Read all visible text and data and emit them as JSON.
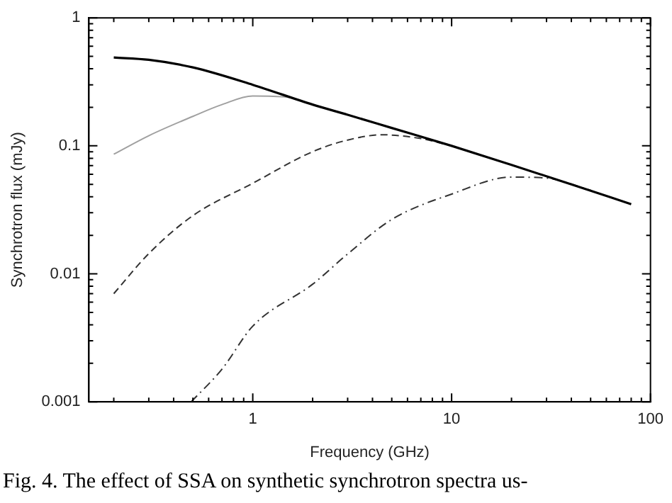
{
  "chart_data": {
    "type": "line",
    "xlabel": "Frequency (GHz)",
    "ylabel": "Synchrotron flux (mJy)",
    "log": "xy",
    "grid": false,
    "marker": "none",
    "xlim": [
      0.15,
      100
    ],
    "ylim": [
      0.001,
      1
    ],
    "xticks": [
      {
        "value": 0.2,
        "label": null
      },
      {
        "value": 0.3,
        "label": null
      },
      {
        "value": 0.4,
        "label": null
      },
      {
        "value": 0.5,
        "label": null
      },
      {
        "value": 0.6,
        "label": null
      },
      {
        "value": 0.7,
        "label": null
      },
      {
        "value": 0.8,
        "label": null
      },
      {
        "value": 0.9,
        "label": null
      },
      1,
      {
        "value": 2,
        "label": null
      },
      {
        "value": 3,
        "label": null
      },
      {
        "value": 4,
        "label": null
      },
      {
        "value": 5,
        "label": null
      },
      {
        "value": 6,
        "label": null
      },
      {
        "value": 7,
        "label": null
      },
      {
        "value": 8,
        "label": null
      },
      {
        "value": 9,
        "label": null
      },
      10,
      {
        "value": 20,
        "label": null
      },
      {
        "value": 30,
        "label": null
      },
      {
        "value": 40,
        "label": null
      },
      {
        "value": 50,
        "label": null
      },
      {
        "value": 60,
        "label": null
      },
      {
        "value": 70,
        "label": null
      },
      {
        "value": 80,
        "label": null
      },
      {
        "value": 90,
        "label": null
      },
      100
    ],
    "yticks": [
      0.001,
      {
        "value": 0.002,
        "label": null
      },
      {
        "value": 0.003,
        "label": null
      },
      {
        "value": 0.004,
        "label": null
      },
      {
        "value": 0.005,
        "label": null
      },
      {
        "value": 0.006,
        "label": null
      },
      {
        "value": 0.007,
        "label": null
      },
      {
        "value": 0.008,
        "label": null
      },
      {
        "value": 0.009,
        "label": null
      },
      0.01,
      {
        "value": 0.02,
        "label": null
      },
      {
        "value": 0.03,
        "label": null
      },
      {
        "value": 0.04,
        "label": null
      },
      {
        "value": 0.05,
        "label": null
      },
      {
        "value": 0.06,
        "label": null
      },
      {
        "value": 0.07,
        "label": null
      },
      {
        "value": 0.08,
        "label": null
      },
      {
        "value": 0.09,
        "label": null
      },
      0.1,
      {
        "value": 0.2,
        "label": null
      },
      {
        "value": 0.3,
        "label": null
      },
      {
        "value": 0.4,
        "label": null
      },
      {
        "value": 0.5,
        "label": null
      },
      {
        "value": 0.6,
        "label": null
      },
      {
        "value": 0.7,
        "label": null
      },
      {
        "value": 0.8,
        "label": null
      },
      {
        "value": 0.9,
        "label": null
      },
      1
    ],
    "series": [
      {
        "color": "#000000",
        "line_style": "solid",
        "x": [
          0.2,
          0.3,
          0.5,
          1,
          2,
          3,
          5,
          10,
          20,
          40,
          80
        ],
        "values": [
          0.49,
          0.47,
          0.41,
          0.3,
          0.21,
          0.175,
          0.138,
          0.1,
          0.071,
          0.05,
          0.035
        ]
      },
      {
        "color": "#a0a0a0",
        "line_style": "solid",
        "x": [
          0.2,
          0.3,
          0.5,
          0.7,
          1,
          1.5,
          2,
          3
        ],
        "values": [
          0.086,
          0.12,
          0.17,
          0.21,
          0.245,
          0.24,
          0.21,
          0.175
        ]
      },
      {
        "color": "#333333",
        "line_style": "dashed",
        "x": [
          0.2,
          0.3,
          0.5,
          1,
          2,
          3,
          4.5,
          7,
          10
        ],
        "values": [
          0.007,
          0.0144,
          0.0285,
          0.051,
          0.09,
          0.111,
          0.122,
          0.114,
          0.1
        ]
      },
      {
        "color": "#333333",
        "line_style": "dashdot",
        "x": [
          0.49,
          0.7,
          1,
          2,
          3,
          5,
          10,
          20,
          30,
          50
        ],
        "values": [
          0.001,
          0.0018,
          0.0039,
          0.0083,
          0.0143,
          0.0266,
          0.042,
          0.057,
          0.056,
          0.045
        ]
      }
    ],
    "annotations": [
      "Fig. 4. The effect of SSA on synthetic synchrotron spectra us-"
    ]
  }
}
